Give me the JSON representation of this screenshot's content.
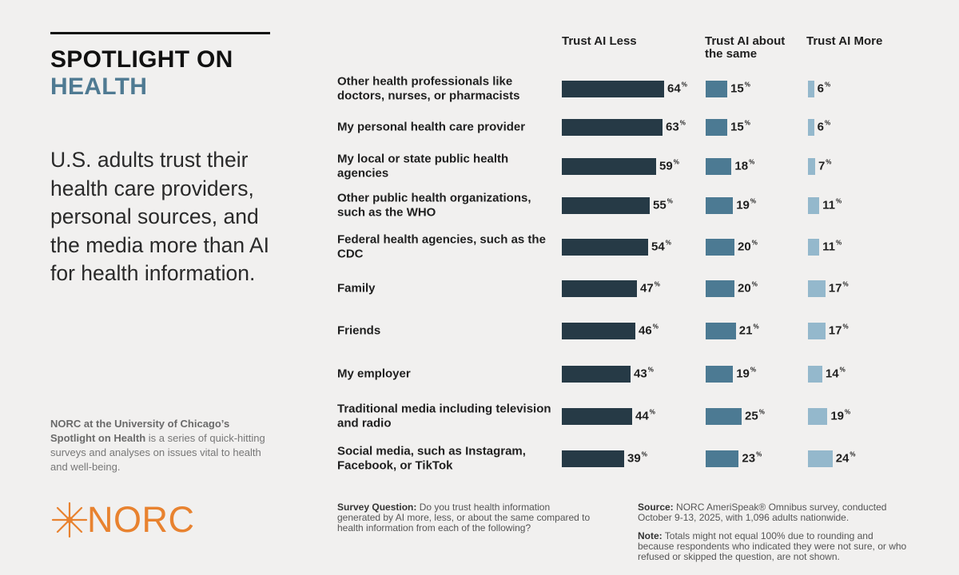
{
  "header": {
    "spot_line1": "SPOTLIGHT ON",
    "spot_line2": "HEALTH",
    "headline": "U.S. adults trust their health care providers, personal sources, and the media more than AI for health information.",
    "about_bold": "NORC at the University of Chicago’s Spotlight on Health",
    "about_rest": " is a series of quick-hitting surveys and analyses on issues vital to health and well-being.",
    "logo_text": "NORC",
    "logo_icon": "norc-star-icon"
  },
  "colors": {
    "less": "#263a46",
    "same": "#4c7a93",
    "more": "#94b8cc",
    "accent": "#4f7a92",
    "logo": "#e8822f"
  },
  "footer": {
    "question_label": "Survey Question:",
    "question_text": " Do you trust health information generated by AI more, less, or about the same compared to health information from each of the following?",
    "source_label": "Source:",
    "source_text": " NORC AmeriSpeak® Omnibus survey, conducted October 9-13, 2025, with 1,096 adults nationwide.",
    "note_label": "Note:",
    "note_text": " Totals might not equal 100% due to rounding and because respondents who indicated they were not sure, or who refused or skipped the question, are not shown."
  },
  "chart_data": {
    "type": "bar",
    "orientation": "horizontal",
    "unit": "%",
    "categories": [
      "Other health professionals like doctors, nurses, or pharmacists",
      "My personal health care provider",
      "My local or state public health agencies",
      "Other public health organizations, such as the WHO",
      "Federal health agencies, such as the CDC",
      "Family",
      "Friends",
      "My employer",
      "Traditional media including television and radio",
      "Social media, such as Instagram, Facebook, or TikTok"
    ],
    "series": [
      {
        "name": "Trust AI Less",
        "values": [
          64,
          63,
          59,
          55,
          54,
          47,
          46,
          43,
          44,
          39
        ]
      },
      {
        "name": "Trust AI about the same",
        "values": [
          15,
          15,
          18,
          19,
          20,
          20,
          21,
          19,
          25,
          23
        ]
      },
      {
        "name": "Trust AI More",
        "values": [
          6,
          6,
          7,
          11,
          11,
          17,
          17,
          14,
          19,
          24
        ]
      }
    ]
  }
}
